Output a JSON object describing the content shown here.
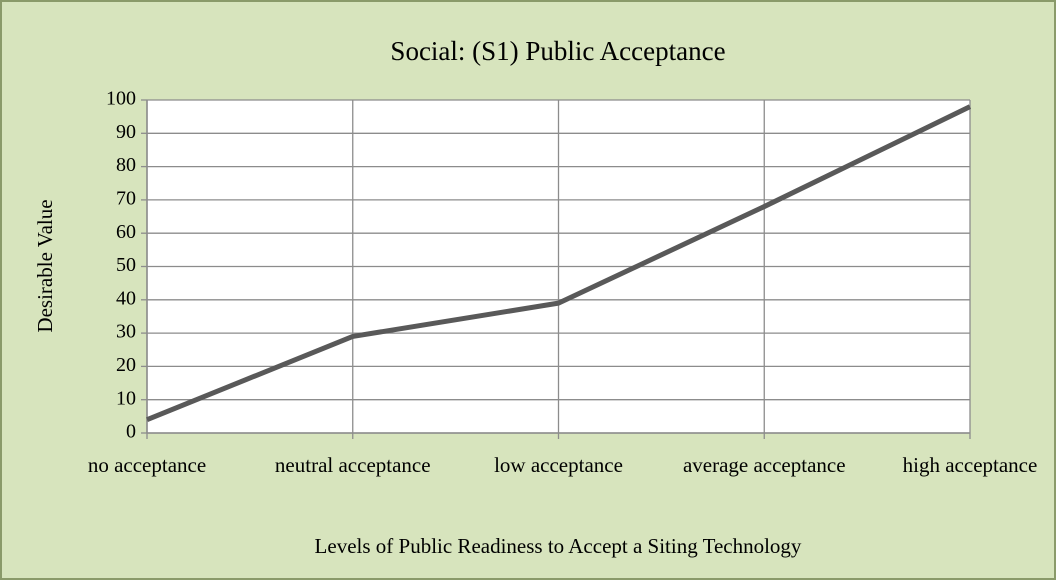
{
  "chart_data": {
    "type": "line",
    "title": "Social: (S1) Public Acceptance",
    "x_label": "Levels of Public Readiness to Accept a Siting Technology",
    "y_label": "Desirable Value",
    "categories": [
      "no acceptance",
      "neutral acceptance",
      "low acceptance",
      "average acceptance",
      "high acceptance"
    ],
    "series": [
      {
        "name": "Desirable Value",
        "color": "#595959",
        "values": [
          4,
          29,
          39,
          68,
          98
        ]
      }
    ],
    "ylim": [
      0,
      100
    ],
    "yticks": [
      0,
      10,
      20,
      30,
      40,
      50,
      60,
      70,
      80,
      90,
      100
    ],
    "grid": true,
    "legend": false
  }
}
